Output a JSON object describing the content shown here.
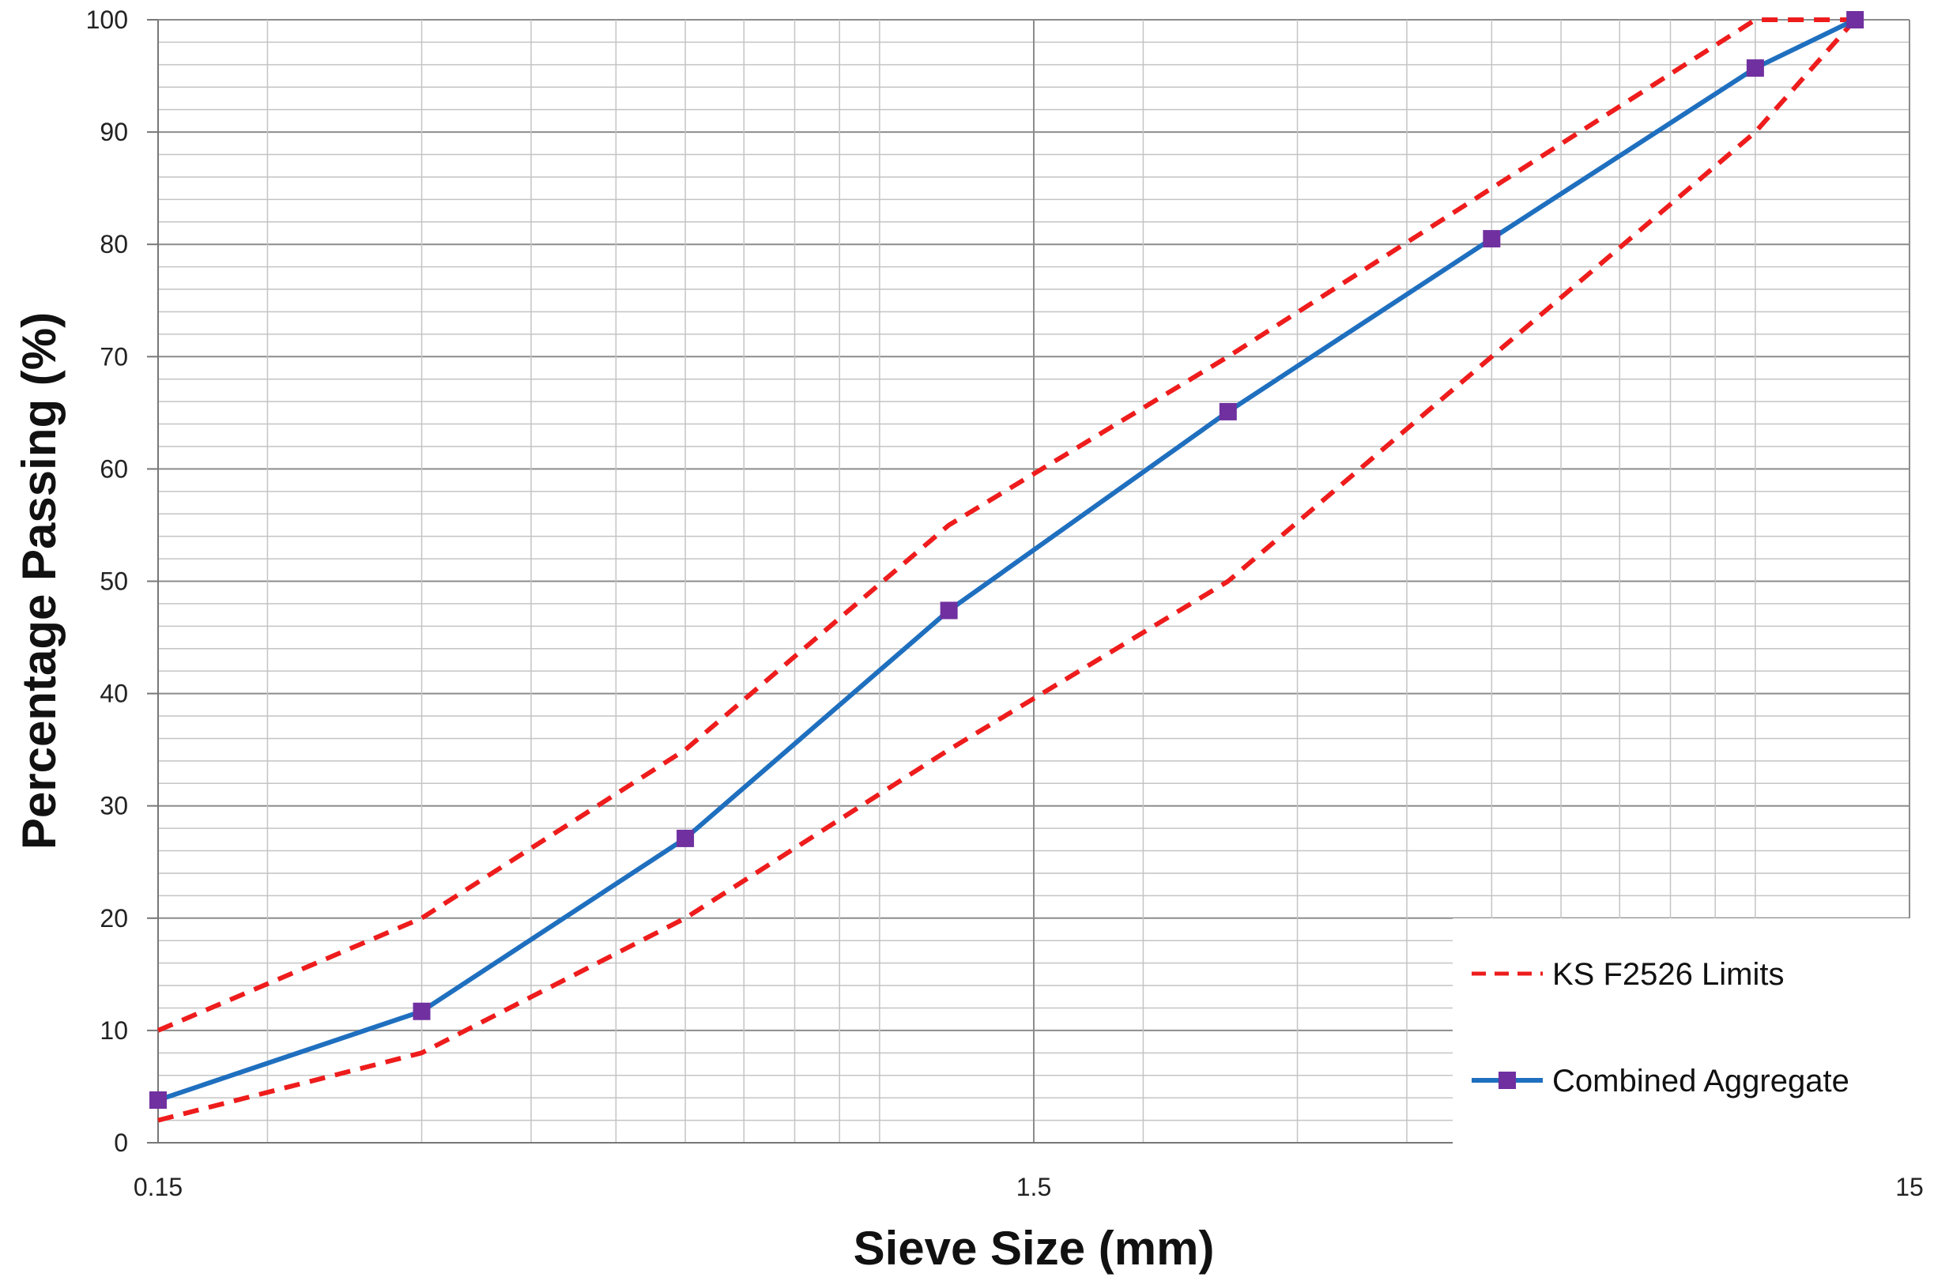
{
  "chart_data": {
    "type": "line",
    "title": "",
    "xlabel": "Sieve Size (mm)",
    "ylabel": "Percentage Passing (%)",
    "xscale": "log",
    "xlim": [
      0.15,
      15
    ],
    "ylim": [
      0,
      100
    ],
    "x_tick_labels": [
      "0.15",
      "1.5",
      "15"
    ],
    "x_tick_values": [
      0.15,
      1.5,
      15
    ],
    "y_tick_labels": [
      "0",
      "10",
      "20",
      "30",
      "40",
      "50",
      "60",
      "70",
      "80",
      "90",
      "100"
    ],
    "y_tick_values": [
      0,
      10,
      20,
      30,
      40,
      50,
      60,
      70,
      80,
      90,
      100
    ],
    "grid": true,
    "legend_position": "bottom-right",
    "legend": [
      {
        "label": "KS F2526 Limits",
        "style": "dashed",
        "color": "#ee1c1c"
      },
      {
        "label": "Combined Aggregate",
        "style": "solid-marker",
        "color": "#1f6fbf",
        "marker_color": "#7030a0"
      }
    ],
    "series": [
      {
        "name": "KS F2526 Limits",
        "role": "upper",
        "color": "#ee1c1c",
        "x": [
          0.15,
          0.3,
          0.6,
          1.2,
          2.5,
          5,
          10,
          13
        ],
        "y": [
          10,
          20,
          35,
          55,
          70,
          85,
          100,
          100
        ]
      },
      {
        "name": "KS F2526 Limits",
        "role": "lower",
        "color": "#ee1c1c",
        "x": [
          0.15,
          0.3,
          0.6,
          1.2,
          2.5,
          5,
          10,
          13
        ],
        "y": [
          2,
          8,
          20,
          35,
          50,
          70,
          90,
          100
        ]
      },
      {
        "name": "Combined Aggregate",
        "color": "#1f6fbf",
        "marker_color": "#7030a0",
        "x": [
          0.15,
          0.3,
          0.6,
          1.2,
          2.5,
          5,
          10,
          13
        ],
        "y": [
          3.8,
          11.7,
          27.1,
          47.4,
          65.1,
          80.5,
          95.7,
          100
        ]
      }
    ]
  }
}
